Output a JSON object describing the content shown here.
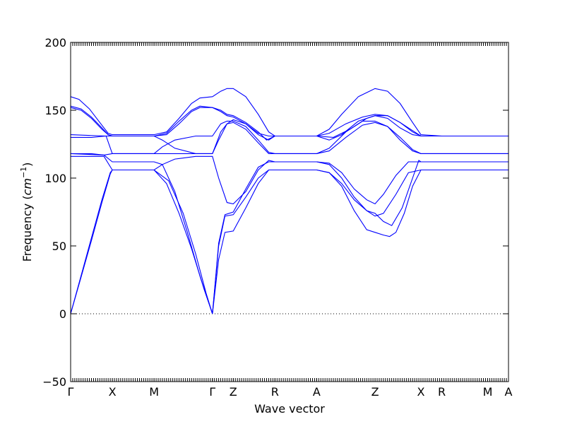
{
  "chart_data": {
    "type": "line",
    "title": "",
    "xlabel": "Wave vector",
    "ylabel": "Frequency",
    "ylabel_unit": "cm",
    "ylabel_exp": "−1",
    "ylim": [
      -50,
      200
    ],
    "yticks": [
      -50,
      0,
      50,
      100,
      150,
      200
    ],
    "ytick_labels": [
      "−50",
      "0",
      "50",
      "100",
      "150",
      "200"
    ],
    "xlim": [
      0,
      10.5
    ],
    "high_symmetry_points": [
      {
        "label": "Γ",
        "x": 0.0
      },
      {
        "label": "X",
        "x": 1.0
      },
      {
        "label": "M",
        "x": 2.0
      },
      {
        "label": "Γ",
        "x": 3.4
      },
      {
        "label": "Z",
        "x": 3.9
      },
      {
        "label": "R",
        "x": 4.9
      },
      {
        "label": "A",
        "x": 5.9
      },
      {
        "label": "Z",
        "x": 7.3
      },
      {
        "label": "X",
        "x": 8.4
      },
      {
        "label": "R",
        "x": 8.9
      },
      {
        "label": "M",
        "x": 10.0
      },
      {
        "label": "A",
        "x": 10.5
      }
    ],
    "zero_line": 0,
    "line_color": "#0000ff",
    "series": [
      {
        "points": [
          [
            0,
            0
          ],
          [
            0.25,
            28
          ],
          [
            0.5,
            56
          ],
          [
            0.75,
            84
          ],
          [
            0.95,
            104
          ],
          [
            1.0,
            106
          ],
          [
            2.0,
            106
          ],
          [
            2.3,
            96
          ],
          [
            2.6,
            74
          ],
          [
            2.9,
            48
          ],
          [
            3.2,
            18
          ],
          [
            3.4,
            0
          ],
          [
            3.55,
            40
          ],
          [
            3.7,
            60
          ],
          [
            3.9,
            61
          ],
          [
            4.2,
            78
          ],
          [
            4.5,
            96
          ],
          [
            4.75,
            106
          ],
          [
            4.9,
            106
          ],
          [
            5.9,
            106
          ],
          [
            6.2,
            104
          ],
          [
            6.5,
            94
          ],
          [
            6.8,
            76
          ],
          [
            7.1,
            62
          ],
          [
            7.3,
            60
          ],
          [
            7.5,
            58
          ],
          [
            7.65,
            57
          ],
          [
            7.8,
            60
          ],
          [
            8.0,
            74
          ],
          [
            8.2,
            94
          ],
          [
            8.4,
            106
          ],
          [
            8.9,
            106
          ],
          [
            10.0,
            106
          ],
          [
            10.5,
            106
          ]
        ]
      },
      {
        "points": [
          [
            0,
            0
          ],
          [
            0.25,
            27
          ],
          [
            0.5,
            54
          ],
          [
            0.75,
            82
          ],
          [
            0.95,
            103
          ],
          [
            1.0,
            106
          ],
          [
            2.0,
            106
          ],
          [
            2.35,
            98
          ],
          [
            2.7,
            74
          ],
          [
            3.0,
            44
          ],
          [
            3.25,
            15
          ],
          [
            3.4,
            0
          ],
          [
            3.55,
            50
          ],
          [
            3.7,
            72
          ],
          [
            3.9,
            73
          ],
          [
            4.2,
            86
          ],
          [
            4.5,
            100
          ],
          [
            4.75,
            106
          ],
          [
            4.9,
            106
          ],
          [
            5.9,
            106
          ],
          [
            6.2,
            104
          ],
          [
            6.5,
            96
          ],
          [
            6.8,
            84
          ],
          [
            7.1,
            76
          ],
          [
            7.3,
            72
          ],
          [
            7.5,
            74
          ],
          [
            7.8,
            88
          ],
          [
            8.1,
            104
          ],
          [
            8.4,
            106
          ],
          [
            8.9,
            106
          ],
          [
            10.5,
            106
          ]
        ]
      },
      {
        "points": [
          [
            0,
            118
          ],
          [
            0.8,
            117
          ],
          [
            1.0,
            112
          ],
          [
            2.0,
            112
          ],
          [
            2.2,
            110
          ],
          [
            2.5,
            90
          ],
          [
            2.8,
            60
          ],
          [
            3.1,
            28
          ],
          [
            3.4,
            0
          ],
          [
            3.55,
            52
          ],
          [
            3.7,
            73
          ],
          [
            3.9,
            75
          ],
          [
            4.2,
            92
          ],
          [
            4.5,
            108
          ],
          [
            4.75,
            112
          ],
          [
            4.9,
            112
          ],
          [
            5.9,
            112
          ],
          [
            6.2,
            110
          ],
          [
            6.5,
            100
          ],
          [
            6.8,
            86
          ],
          [
            7.1,
            76
          ],
          [
            7.3,
            74
          ],
          [
            7.5,
            68
          ],
          [
            7.7,
            65
          ],
          [
            7.95,
            78
          ],
          [
            8.2,
            100
          ],
          [
            8.35,
            113
          ],
          [
            8.4,
            112
          ],
          [
            8.9,
            112
          ],
          [
            10.5,
            112
          ]
        ]
      },
      {
        "points": [
          [
            0,
            116
          ],
          [
            0.8,
            116
          ],
          [
            1.0,
            106
          ],
          [
            2.0,
            106
          ],
          [
            2.2,
            110
          ],
          [
            2.5,
            114
          ],
          [
            3.0,
            116
          ],
          [
            3.4,
            116
          ],
          [
            3.55,
            100
          ],
          [
            3.75,
            82
          ],
          [
            3.9,
            81
          ],
          [
            4.2,
            90
          ],
          [
            4.5,
            106
          ],
          [
            4.75,
            113
          ],
          [
            4.9,
            112
          ],
          [
            5.9,
            112
          ],
          [
            6.2,
            111
          ],
          [
            6.5,
            104
          ],
          [
            6.8,
            92
          ],
          [
            7.1,
            84
          ],
          [
            7.3,
            81
          ],
          [
            7.5,
            88
          ],
          [
            7.8,
            102
          ],
          [
            8.1,
            112
          ],
          [
            8.4,
            112
          ],
          [
            8.9,
            112
          ],
          [
            10.5,
            112
          ]
        ]
      },
      {
        "points": [
          [
            0,
            118
          ],
          [
            0.5,
            118
          ],
          [
            0.8,
            117
          ],
          [
            1.0,
            118
          ],
          [
            2.0,
            118
          ],
          [
            2.2,
            118
          ],
          [
            2.5,
            118
          ],
          [
            3.0,
            118
          ],
          [
            3.4,
            118
          ],
          [
            3.6,
            134
          ],
          [
            3.75,
            140
          ],
          [
            3.9,
            141
          ],
          [
            4.2,
            136
          ],
          [
            4.5,
            126
          ],
          [
            4.75,
            118
          ],
          [
            4.9,
            118
          ],
          [
            5.9,
            118
          ],
          [
            6.2,
            120
          ],
          [
            6.6,
            130
          ],
          [
            7.0,
            139
          ],
          [
            7.3,
            141
          ],
          [
            7.6,
            138
          ],
          [
            7.9,
            130
          ],
          [
            8.2,
            121
          ],
          [
            8.4,
            118
          ],
          [
            8.9,
            118
          ],
          [
            10.5,
            118
          ]
        ]
      },
      {
        "points": [
          [
            0,
            130
          ],
          [
            0.5,
            130
          ],
          [
            0.85,
            131
          ],
          [
            1.0,
            118
          ],
          [
            2.0,
            118
          ],
          [
            2.2,
            123
          ],
          [
            2.5,
            128
          ],
          [
            3.0,
            131
          ],
          [
            3.4,
            131
          ],
          [
            3.6,
            140
          ],
          [
            3.75,
            142
          ],
          [
            3.9,
            142
          ],
          [
            4.2,
            138
          ],
          [
            4.5,
            128
          ],
          [
            4.75,
            119
          ],
          [
            4.9,
            118
          ],
          [
            5.9,
            118
          ],
          [
            6.2,
            122
          ],
          [
            6.6,
            134
          ],
          [
            7.0,
            142
          ],
          [
            7.3,
            142
          ],
          [
            7.6,
            138
          ],
          [
            7.9,
            128
          ],
          [
            8.2,
            120
          ],
          [
            8.4,
            118
          ],
          [
            8.9,
            118
          ],
          [
            10.5,
            118
          ]
        ]
      },
      {
        "points": [
          [
            0,
            132
          ],
          [
            0.85,
            131
          ],
          [
            1.0,
            131
          ],
          [
            2.0,
            131
          ],
          [
            2.2,
            128
          ],
          [
            2.5,
            122
          ],
          [
            3.0,
            118
          ],
          [
            3.4,
            118
          ],
          [
            3.55,
            128
          ],
          [
            3.75,
            140
          ],
          [
            3.9,
            143
          ],
          [
            4.2,
            140
          ],
          [
            4.5,
            133
          ],
          [
            4.75,
            131
          ],
          [
            4.9,
            131
          ],
          [
            5.9,
            131
          ],
          [
            6.3,
            130
          ],
          [
            6.7,
            136
          ],
          [
            7.1,
            144
          ],
          [
            7.3,
            146
          ],
          [
            7.6,
            144
          ],
          [
            7.9,
            137
          ],
          [
            8.2,
            132
          ],
          [
            8.4,
            131
          ],
          [
            8.9,
            131
          ],
          [
            10.5,
            131
          ]
        ]
      },
      {
        "points": [
          [
            0,
            152
          ],
          [
            0.25,
            150
          ],
          [
            0.5,
            144
          ],
          [
            0.75,
            136
          ],
          [
            0.9,
            132
          ],
          [
            1.0,
            131
          ],
          [
            2.0,
            131
          ],
          [
            2.3,
            132
          ],
          [
            2.6,
            140
          ],
          [
            2.9,
            149
          ],
          [
            3.1,
            152
          ],
          [
            3.4,
            152
          ],
          [
            3.6,
            149
          ],
          [
            3.75,
            146
          ],
          [
            3.9,
            145
          ],
          [
            4.2,
            140
          ],
          [
            4.5,
            132
          ],
          [
            4.75,
            128
          ],
          [
            4.9,
            131
          ],
          [
            5.9,
            131
          ],
          [
            6.2,
            128
          ],
          [
            6.5,
            132
          ],
          [
            6.9,
            142
          ],
          [
            7.3,
            146
          ],
          [
            7.6,
            146
          ],
          [
            7.9,
            141
          ],
          [
            8.2,
            135
          ],
          [
            8.4,
            131
          ],
          [
            8.9,
            131
          ],
          [
            10.5,
            131
          ]
        ]
      },
      {
        "points": [
          [
            0,
            153
          ],
          [
            0.25,
            151
          ],
          [
            0.5,
            145
          ],
          [
            0.75,
            137
          ],
          [
            0.9,
            132
          ],
          [
            1.0,
            131
          ],
          [
            2.0,
            131
          ],
          [
            2.3,
            133
          ],
          [
            2.6,
            142
          ],
          [
            2.9,
            150
          ],
          [
            3.1,
            153
          ],
          [
            3.4,
            152
          ],
          [
            3.6,
            150
          ],
          [
            3.75,
            147
          ],
          [
            3.9,
            146
          ],
          [
            4.2,
            141
          ],
          [
            4.5,
            134
          ],
          [
            4.7,
            128
          ],
          [
            4.9,
            131
          ],
          [
            5.9,
            131
          ],
          [
            6.2,
            133
          ],
          [
            6.6,
            140
          ],
          [
            7.0,
            145
          ],
          [
            7.3,
            147
          ],
          [
            7.6,
            146
          ],
          [
            7.9,
            141
          ],
          [
            8.2,
            134
          ],
          [
            8.4,
            131
          ],
          [
            8.9,
            131
          ],
          [
            10.5,
            131
          ]
        ]
      },
      {
        "points": [
          [
            0,
            160
          ],
          [
            0.2,
            158
          ],
          [
            0.45,
            151
          ],
          [
            0.7,
            141
          ],
          [
            0.9,
            133
          ],
          [
            1.0,
            132
          ],
          [
            2.0,
            132
          ],
          [
            2.3,
            134
          ],
          [
            2.6,
            144
          ],
          [
            2.9,
            155
          ],
          [
            3.1,
            159
          ],
          [
            3.4,
            160
          ],
          [
            3.6,
            164
          ],
          [
            3.75,
            166
          ],
          [
            3.9,
            166
          ],
          [
            4.2,
            160
          ],
          [
            4.5,
            147
          ],
          [
            4.75,
            134
          ],
          [
            4.9,
            131
          ],
          [
            5.9,
            131
          ],
          [
            6.2,
            136
          ],
          [
            6.5,
            147
          ],
          [
            6.9,
            160
          ],
          [
            7.3,
            166
          ],
          [
            7.6,
            164
          ],
          [
            7.9,
            155
          ],
          [
            8.2,
            141
          ],
          [
            8.4,
            132
          ],
          [
            8.9,
            131
          ],
          [
            10.5,
            131
          ]
        ]
      }
    ]
  }
}
